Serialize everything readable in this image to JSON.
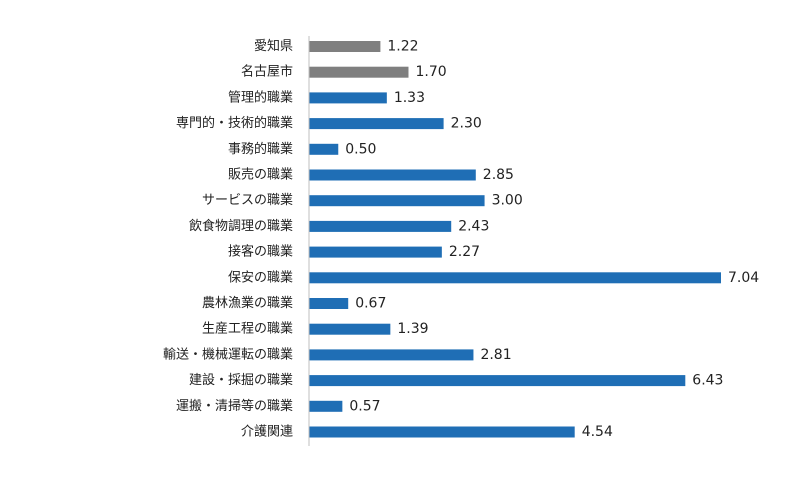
{
  "chart_data": {
    "type": "bar",
    "orientation": "horizontal",
    "categories": [
      "愛知県",
      "名古屋市",
      "管理的職業",
      "専門的・技術的職業",
      "事務的職業",
      "販売の職業",
      "サービスの職業",
      "飲食物調理の職業",
      "接客の職業",
      "保安の職業",
      "農林漁業の職業",
      "生産工程の職業",
      "輸送・機械運転の職業",
      "建設・採掘の職業",
      "運搬・清掃等の職業",
      "介護関連"
    ],
    "values": [
      1.22,
      1.7,
      1.33,
      2.3,
      0.5,
      2.85,
      3.0,
      2.43,
      2.27,
      7.04,
      0.67,
      1.39,
      2.81,
      6.43,
      0.57,
      4.54
    ],
    "value_labels": [
      "1.22",
      "1.70",
      "1.33",
      "2.30",
      "0.50",
      "2.85",
      "3.00",
      "2.43",
      "2.27",
      "7.04",
      "0.67",
      "1.39",
      "2.81",
      "6.43",
      "0.57",
      "4.54"
    ],
    "bar_colors": [
      "#7f7f7f",
      "#7f7f7f",
      "#1f6eb5",
      "#1f6eb5",
      "#1f6eb5",
      "#1f6eb5",
      "#1f6eb5",
      "#1f6eb5",
      "#1f6eb5",
      "#1f6eb5",
      "#1f6eb5",
      "#1f6eb5",
      "#1f6eb5",
      "#1f6eb5",
      "#1f6eb5",
      "#1f6eb5"
    ],
    "xlim": [
      0,
      7.04
    ],
    "grid": false,
    "legend": "none"
  }
}
